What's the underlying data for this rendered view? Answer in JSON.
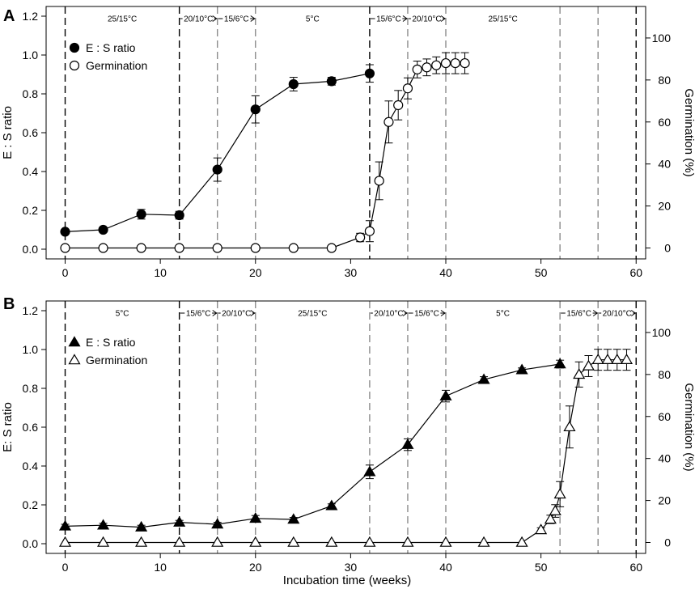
{
  "chart_data": [
    {
      "panel": "A",
      "type": "line",
      "markers": "circle",
      "xlim": [
        -2,
        61
      ],
      "ylim": [
        -0.05,
        1.25
      ],
      "y2lim": [
        -5.2,
        115
      ],
      "xticks": [
        0,
        10,
        20,
        30,
        40,
        50,
        60
      ],
      "yticks": [
        0.0,
        0.2,
        0.4,
        0.6,
        0.8,
        1.0,
        1.2
      ],
      "y2ticks": [
        0,
        20,
        40,
        60,
        80,
        100
      ],
      "ylabel": "E : S ratio",
      "y2label": "Germination (%)",
      "legend_placement": "top-left",
      "grid": false,
      "dividers": [
        {
          "x": 0,
          "style": "black"
        },
        {
          "x": 12,
          "style": "black"
        },
        {
          "x": 16,
          "style": "grey"
        },
        {
          "x": 20,
          "style": "grey"
        },
        {
          "x": 32,
          "style": "black"
        },
        {
          "x": 36,
          "style": "grey"
        },
        {
          "x": 40,
          "style": "grey"
        },
        {
          "x": 52,
          "style": "grey"
        },
        {
          "x": 56,
          "style": "grey"
        },
        {
          "x": 60,
          "style": "black"
        }
      ],
      "periods": [
        {
          "label": "25/15°C",
          "x0": 0,
          "x1": 12,
          "arrow": false
        },
        {
          "label": "20/10°C",
          "x0": 12,
          "x1": 16,
          "arrow": true
        },
        {
          "label": "15/6°C",
          "x0": 16,
          "x1": 20,
          "arrow": true
        },
        {
          "label": "5°C",
          "x0": 20,
          "x1": 32,
          "arrow": false
        },
        {
          "label": "15/6°C",
          "x0": 32,
          "x1": 36,
          "arrow": true
        },
        {
          "label": "20/10°C",
          "x0": 36,
          "x1": 40,
          "arrow": true
        },
        {
          "label": "25/15°C",
          "x0": 40,
          "x1": 52,
          "arrow": false
        }
      ],
      "series": [
        {
          "name": "E : S ratio",
          "axis": "left",
          "fill": "filled",
          "x": [
            0,
            4,
            8,
            12,
            16,
            20,
            24,
            28,
            32
          ],
          "y": [
            0.09,
            0.1,
            0.18,
            0.175,
            0.41,
            0.72,
            0.85,
            0.865,
            0.905
          ],
          "err": [
            0.01,
            0.01,
            0.025,
            0.02,
            0.06,
            0.07,
            0.035,
            0.02,
            0.045
          ]
        },
        {
          "name": "Germination",
          "axis": "right",
          "fill": "open",
          "x": [
            0,
            4,
            8,
            12,
            16,
            20,
            24,
            28,
            31,
            32,
            33,
            34,
            35,
            36,
            37,
            38,
            39,
            40,
            41,
            42
          ],
          "y": [
            0,
            0,
            0,
            0,
            0,
            0,
            0,
            0,
            5,
            8,
            32,
            60,
            68,
            76,
            85,
            86,
            87,
            88,
            88,
            88
          ],
          "err": [
            0,
            0,
            0,
            0,
            0,
            0,
            0,
            0,
            2,
            5,
            9,
            10,
            7,
            5,
            4,
            4,
            4,
            5,
            5,
            5
          ]
        }
      ]
    },
    {
      "panel": "B",
      "type": "line",
      "markers": "triangle",
      "xlim": [
        -2,
        61
      ],
      "ylim": [
        -0.05,
        1.25
      ],
      "y2lim": [
        -5.2,
        115
      ],
      "xticks": [
        0,
        10,
        20,
        30,
        40,
        50,
        60
      ],
      "yticks": [
        0.0,
        0.2,
        0.4,
        0.6,
        0.8,
        1.0,
        1.2
      ],
      "y2ticks": [
        0,
        20,
        40,
        60,
        80,
        100
      ],
      "xlabel": "Incubation time (weeks)",
      "ylabel": "E: S ratio",
      "y2label": "Germination (%)",
      "legend_placement": "top-left",
      "grid": false,
      "dividers": [
        {
          "x": 0,
          "style": "black"
        },
        {
          "x": 12,
          "style": "black"
        },
        {
          "x": 16,
          "style": "grey"
        },
        {
          "x": 20,
          "style": "grey"
        },
        {
          "x": 32,
          "style": "grey"
        },
        {
          "x": 36,
          "style": "grey"
        },
        {
          "x": 40,
          "style": "grey"
        },
        {
          "x": 52,
          "style": "grey"
        },
        {
          "x": 56,
          "style": "grey"
        },
        {
          "x": 60,
          "style": "black"
        }
      ],
      "periods": [
        {
          "label": "5°C",
          "x0": 0,
          "x1": 12,
          "arrow": false
        },
        {
          "label": "15/6°C",
          "x0": 12,
          "x1": 16,
          "arrow": true
        },
        {
          "label": "20/10°C",
          "x0": 16,
          "x1": 20,
          "arrow": true
        },
        {
          "label": "25/15°C",
          "x0": 20,
          "x1": 32,
          "arrow": false
        },
        {
          "label": "20/10°C",
          "x0": 32,
          "x1": 36,
          "arrow": true
        },
        {
          "label": "15/6°C",
          "x0": 36,
          "x1": 40,
          "arrow": true
        },
        {
          "label": "5°C",
          "x0": 40,
          "x1": 52,
          "arrow": false
        },
        {
          "label": "15/6°C",
          "x0": 52,
          "x1": 56,
          "arrow": true
        },
        {
          "label": "20/10°C",
          "x0": 56,
          "x1": 60,
          "arrow": true
        }
      ],
      "series": [
        {
          "name": "E : S ratio",
          "axis": "left",
          "fill": "filled",
          "x": [
            0,
            4,
            8,
            12,
            16,
            20,
            24,
            28,
            32,
            36,
            40,
            44,
            48,
            52
          ],
          "y": [
            0.09,
            0.095,
            0.085,
            0.11,
            0.1,
            0.13,
            0.125,
            0.195,
            0.37,
            0.51,
            0.76,
            0.845,
            0.895,
            0.925
          ],
          "err": [
            0.01,
            0.01,
            0.01,
            0.01,
            0.01,
            0.015,
            0.01,
            0.01,
            0.035,
            0.03,
            0.03,
            0.015,
            0.01,
            0.02
          ]
        },
        {
          "name": "Germination",
          "axis": "right",
          "fill": "open",
          "x": [
            0,
            4,
            8,
            12,
            16,
            20,
            24,
            28,
            32,
            36,
            40,
            44,
            48,
            50,
            51,
            51.5,
            52,
            53,
            54,
            55,
            56,
            57,
            58,
            59
          ],
          "y": [
            0,
            0,
            0,
            0,
            0,
            0,
            0,
            0,
            0,
            0,
            0,
            0,
            0,
            6,
            11,
            15,
            23,
            55,
            80,
            84,
            87,
            87,
            87,
            87
          ],
          "err": [
            0,
            0,
            0,
            0,
            0,
            0,
            0,
            0,
            0,
            0,
            0,
            0,
            0,
            1,
            2,
            3,
            6,
            10,
            6,
            5,
            5,
            5,
            5,
            5
          ]
        }
      ]
    }
  ]
}
